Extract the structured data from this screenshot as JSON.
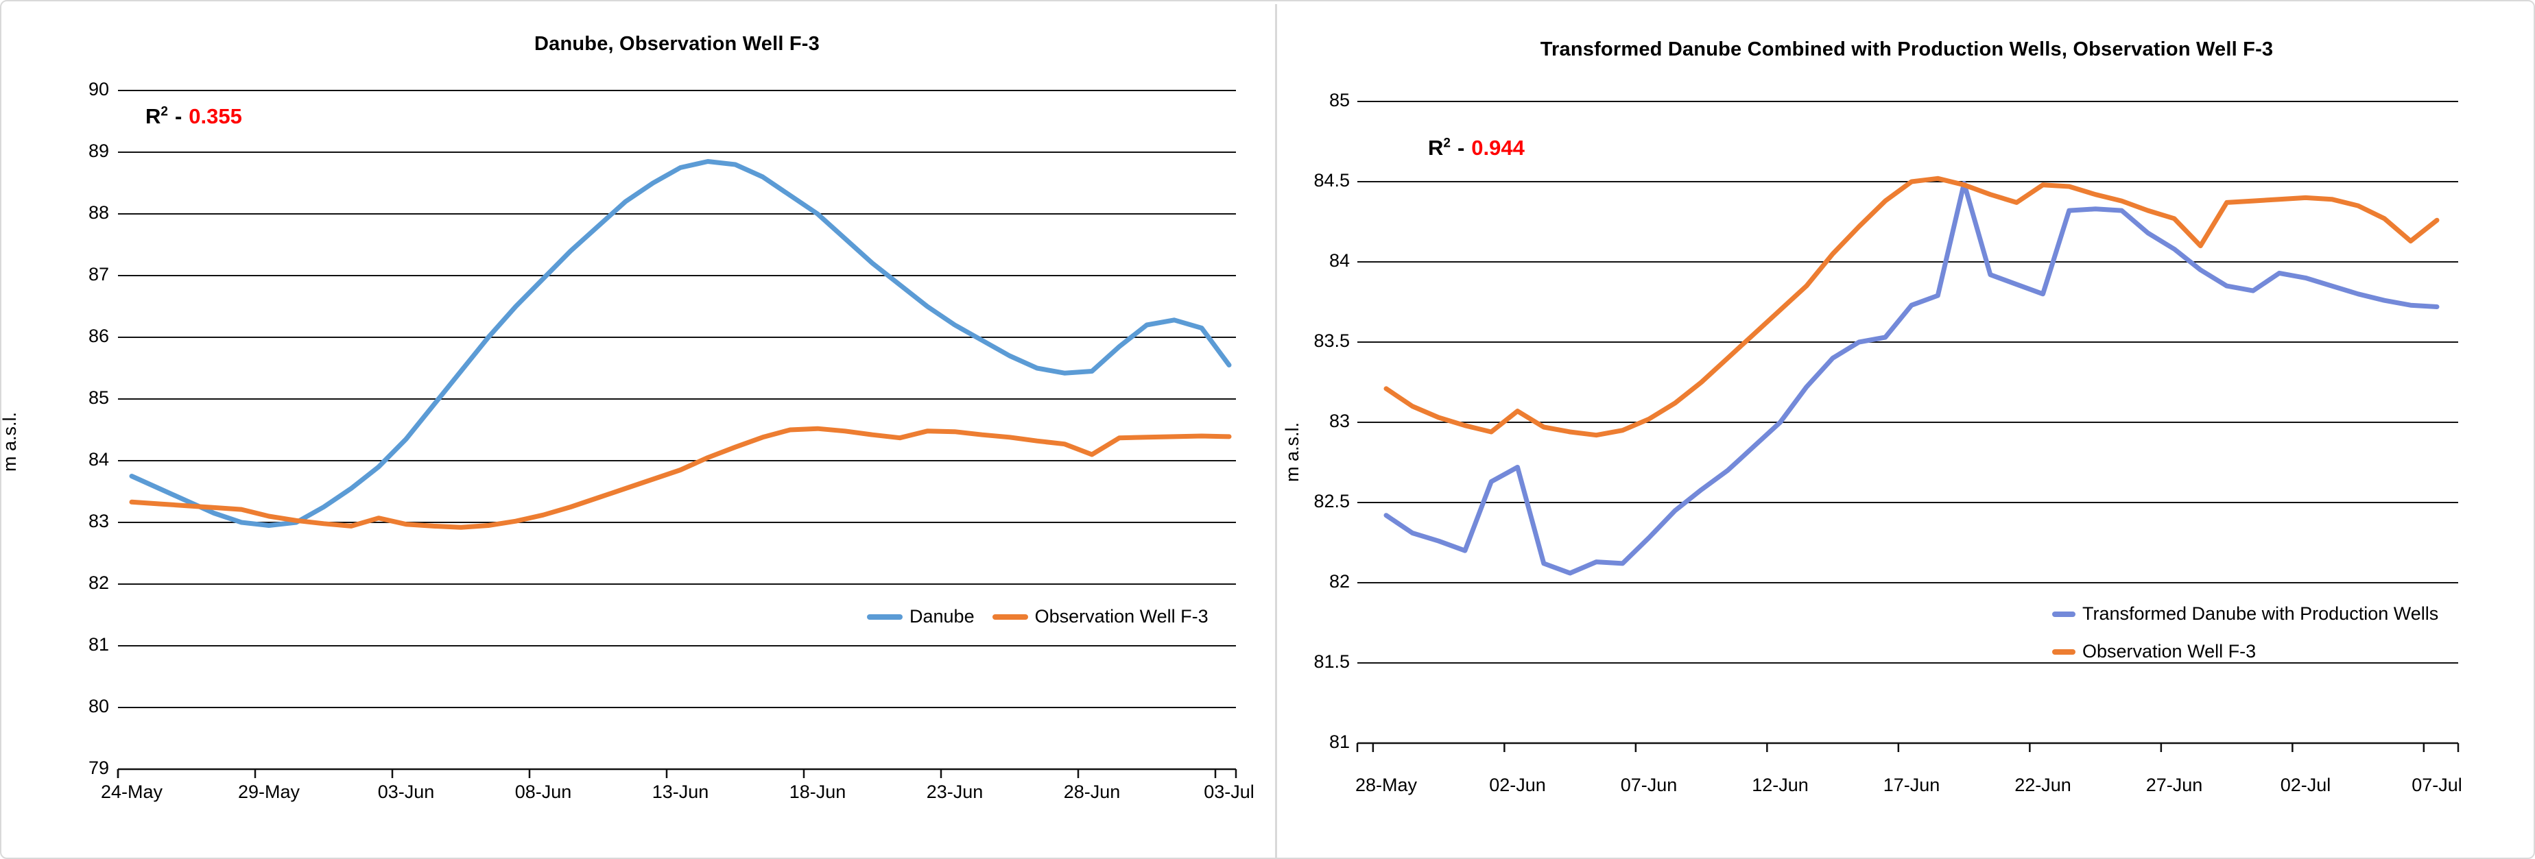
{
  "page": {
    "background": "#ffffff",
    "frame_color": "#d9d9d9",
    "grid_color": "#111111",
    "text_color": "#000000"
  },
  "chart_data": [
    {
      "type": "line",
      "title": "Danube, Observation Well F-3",
      "ylabel": "m a.s.l.",
      "ylim": [
        79,
        90
      ],
      "ytick_step": 1,
      "grid": true,
      "legend_position": "inside-bottom-right-row",
      "r2": {
        "base": "R",
        "sup": "2",
        "sep": "-",
        "value": "0.355",
        "color": "#FF0000"
      },
      "x_tick_labels": [
        "24-May",
        "29-May",
        "03-Jun",
        "08-Jun",
        "13-Jun",
        "18-Jun",
        "23-Jun",
        "28-Jun",
        "03-Jul"
      ],
      "x_tick_every": 5,
      "series": [
        {
          "name": "Danube",
          "color": "#5B9BD5",
          "values": [
            83.75,
            83.55,
            83.35,
            83.15,
            83.0,
            82.95,
            83.0,
            83.25,
            83.55,
            83.9,
            84.35,
            84.9,
            85.45,
            86.0,
            86.5,
            86.95,
            87.4,
            87.8,
            88.2,
            88.5,
            88.75,
            88.85,
            88.8,
            88.6,
            88.3,
            88.0,
            87.6,
            87.2,
            86.85,
            86.5,
            86.2,
            85.95,
            85.7,
            85.5,
            85.42,
            85.45,
            85.85,
            86.2,
            86.28,
            86.15,
            85.55
          ]
        },
        {
          "name": "Observation Well F-3",
          "color": "#ED7D31",
          "values": [
            83.33,
            83.3,
            83.27,
            83.24,
            83.21,
            83.1,
            83.03,
            82.98,
            82.94,
            83.07,
            82.97,
            82.94,
            82.92,
            82.95,
            83.02,
            83.12,
            83.25,
            83.4,
            83.55,
            83.7,
            83.85,
            84.05,
            84.22,
            84.38,
            84.5,
            84.52,
            84.48,
            84.42,
            84.37,
            84.48,
            84.47,
            84.42,
            84.38,
            84.32,
            84.27,
            84.1,
            84.37,
            84.38,
            84.39,
            84.4,
            84.39
          ]
        }
      ]
    },
    {
      "type": "line",
      "title": "Transformed Danube Combined with  Production Wells, Observation Well F-3",
      "ylabel": "m a.s.l.",
      "ylim": [
        81,
        85
      ],
      "ytick_step": 0.5,
      "grid": true,
      "legend_position": "inside-bottom-right-stacked",
      "r2": {
        "base": "R",
        "sup": "2",
        "sep": "-",
        "value": "0.944",
        "color": "#FF0000"
      },
      "x_tick_labels": [
        "28-May",
        "02-Jun",
        "07-Jun",
        "12-Jun",
        "17-Jun",
        "22-Jun",
        "27-Jun",
        "02-Jul",
        "07-Jul"
      ],
      "x_tick_every": 5,
      "series": [
        {
          "name": "Transformed Danube with Production Wells",
          "color": "#7389D9",
          "values": [
            82.42,
            82.31,
            82.26,
            82.2,
            82.63,
            82.72,
            82.12,
            82.06,
            82.13,
            82.12,
            82.28,
            82.45,
            82.58,
            82.7,
            82.85,
            83.0,
            83.22,
            83.4,
            83.5,
            83.53,
            83.73,
            83.79,
            84.49,
            83.92,
            83.86,
            83.8,
            84.32,
            84.33,
            84.32,
            84.18,
            84.08,
            83.95,
            83.85,
            83.82,
            83.93,
            83.9,
            83.85,
            83.8,
            83.76,
            83.73,
            83.72
          ]
        },
        {
          "name": "Observation Well F-3",
          "color": "#ED7D31",
          "values": [
            83.21,
            83.1,
            83.03,
            82.98,
            82.94,
            83.07,
            82.97,
            82.94,
            82.92,
            82.95,
            83.02,
            83.12,
            83.25,
            83.4,
            83.55,
            83.7,
            83.85,
            84.05,
            84.22,
            84.38,
            84.5,
            84.52,
            84.48,
            84.42,
            84.37,
            84.48,
            84.47,
            84.42,
            84.38,
            84.32,
            84.27,
            84.1,
            84.37,
            84.38,
            84.39,
            84.4,
            84.39,
            84.35,
            84.27,
            84.13,
            84.26
          ]
        }
      ]
    }
  ]
}
